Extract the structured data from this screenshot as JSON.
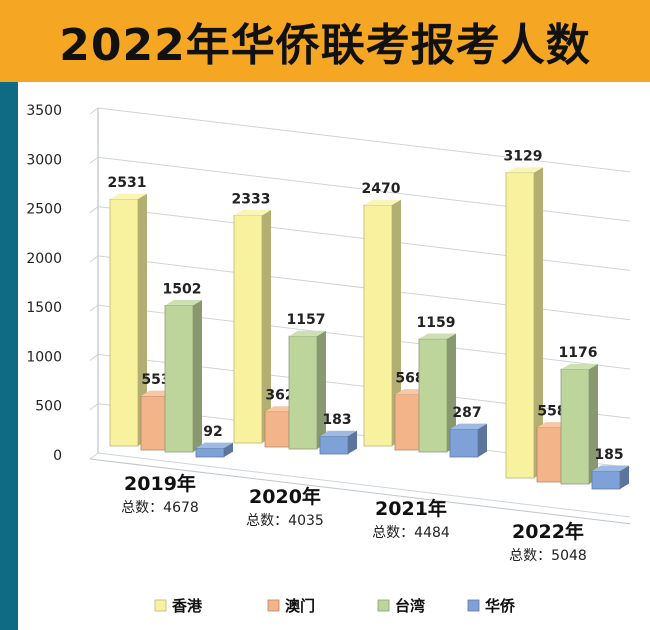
{
  "title": "2022年华侨联考报考人数",
  "chart_data": {
    "type": "bar",
    "categories": [
      "2019年",
      "2020年",
      "2021年",
      "2022年"
    ],
    "category_notes": [
      "总数：4678",
      "总数：4035",
      "总数：4484",
      "总数：5048"
    ],
    "series": [
      {
        "name": "香港",
        "values": [
          2531,
          2333,
          2470,
          3129
        ],
        "color": "#f8f29e"
      },
      {
        "name": "澳门",
        "values": [
          553,
          362,
          568,
          558
        ],
        "color": "#f4b48a"
      },
      {
        "name": "台湾",
        "values": [
          1502,
          1157,
          1159,
          1176
        ],
        "color": "#bdd49a"
      },
      {
        "name": "华侨",
        "values": [
          92,
          183,
          287,
          185
        ],
        "color": "#7ea2d8"
      }
    ],
    "yticks": [
      0,
      500,
      1000,
      1500,
      2000,
      2500,
      3000,
      3500
    ],
    "ylim": [
      0,
      3500
    ],
    "legend_position": "bottom",
    "grid": true
  },
  "colors": {
    "header": "#f5a623",
    "sidebar": "#0f6b84"
  }
}
